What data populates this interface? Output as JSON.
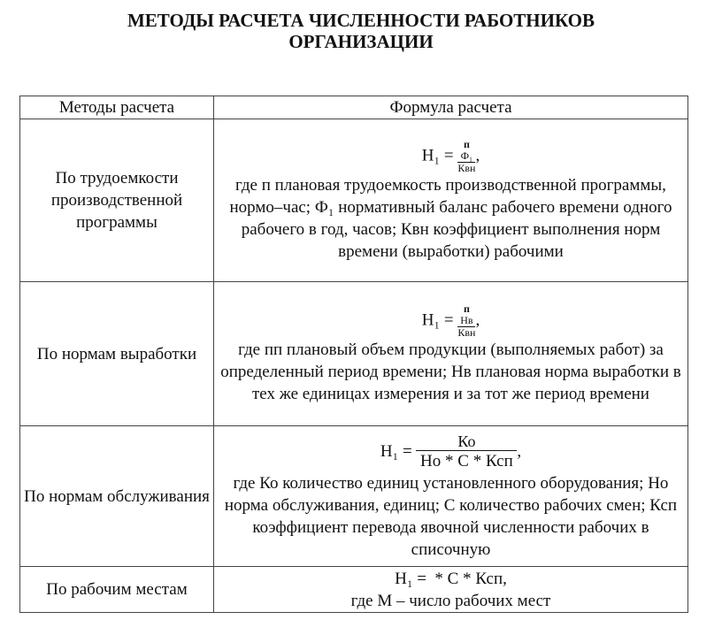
{
  "title_line1": "МЕТОДЫ РАСЧЕТА ЧИСЛЕННОСТИ РАБОТНИКОВ",
  "title_line2": "ОРГАНИЗАЦИИ",
  "headers": [
    "Методы расчета",
    "Формула расчета"
  ],
  "rows": [
    {
      "method": "По трудоемкости производственной программы",
      "formula": {
        "lhs": "Н₁ =",
        "num_top": "п",
        "num": "Ф₁",
        "den": "Квн",
        "tail": ","
      },
      "desc": "где п плановая трудоемкость производственной программы, нормо–час; Ф₁ нормативный баланс рабочего времени одного рабочего в год, часов; Квн коэффициент выполнения норм времени (выработки) рабочими"
    },
    {
      "method": "По нормам выработки",
      "formula": {
        "lhs": "Н₁ =",
        "num_top": "п",
        "num": "Нв",
        "den": "Квн",
        "tail": ","
      },
      "desc": "где пп плановый объем продукции (выполняемых работ) за определенный период времени; Нв плановая норма выработки в тех же единицах измерения и за тот же период времени"
    },
    {
      "method": "По нормам обслуживания",
      "formula": {
        "lhs": "Н₁ =",
        "num": "Ко",
        "den": "Но * С * Ксп",
        "tail": ","
      },
      "desc": "где Ко количество единиц установленного оборудования; Но норма обслуживания, единиц; С количество рабочих смен; Ксп коэффициент перевода явочной численности рабочих в списочную"
    },
    {
      "method": "По рабочим местам",
      "formula": {
        "lhs": "Н₁ =",
        "expr": "* С * Ксп,"
      },
      "desc": "где М – число рабочих мест"
    }
  ]
}
